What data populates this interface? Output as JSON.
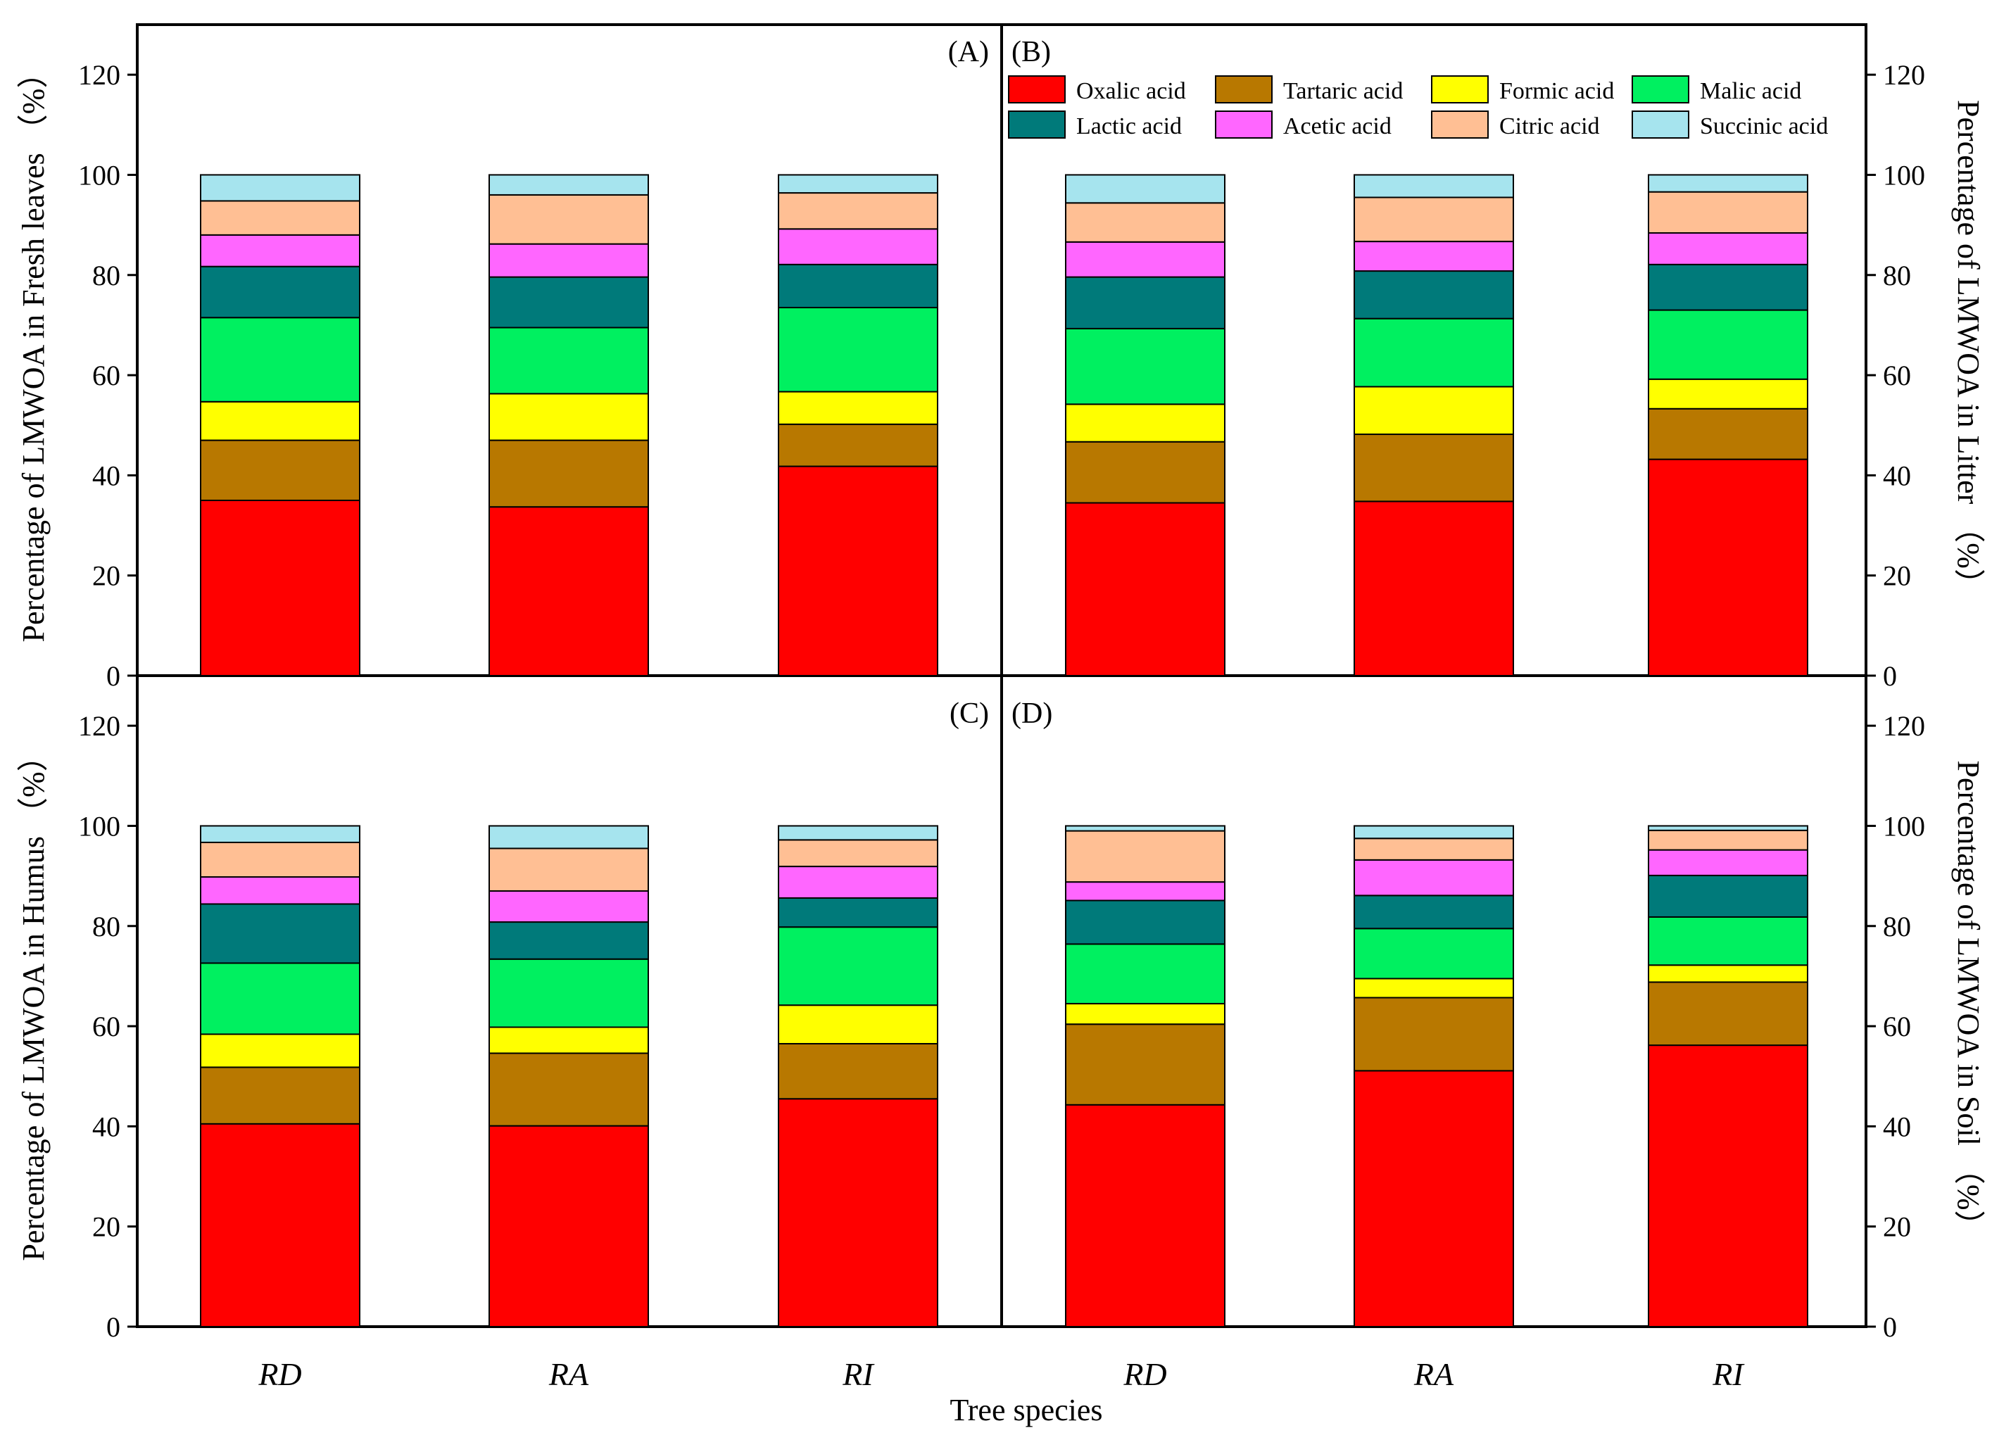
{
  "colors": {
    "Oxalic acid": "#ff0000",
    "Tartaric acid": "#b87800",
    "Formic acid": "#ffff00",
    "Malic acid": "#00f060",
    "Lactic acid": "#007a7a",
    "Acetic acid": "#ff66ff",
    "Citric acid": "#ffbf94",
    "Succinic acid": "#a6e4ee"
  },
  "chart_data": {
    "type": "bar",
    "stacked": true,
    "xlabel": "Tree species",
    "categories": [
      "RD",
      "RA",
      "RI"
    ],
    "series_names": [
      "Oxalic acid",
      "Tartaric acid",
      "Formic acid",
      "Malic acid",
      "Lactic acid",
      "Acetic acid",
      "Citric acid",
      "Succinic acid"
    ],
    "ylim": [
      0,
      130
    ],
    "yticks": [
      0,
      20,
      40,
      60,
      80,
      100,
      120
    ],
    "legend_position": "top of panel B",
    "panels": [
      {
        "label": "(A)",
        "ylabel": "Percentage of LMWOA in Fresh leaves （%）",
        "stacks": {
          "RD": [
            35.0,
            12.0,
            7.7,
            16.8,
            10.2,
            6.3,
            6.8,
            5.2
          ],
          "RA": [
            33.7,
            13.3,
            9.3,
            13.2,
            10.1,
            6.6,
            9.8,
            4.0
          ],
          "RI": [
            41.8,
            8.4,
            6.5,
            16.8,
            8.6,
            7.1,
            7.2,
            3.6
          ]
        }
      },
      {
        "label": "(B)",
        "ylabel": "Percentage of LMWOA in Litter （%）",
        "stacks": {
          "RD": [
            34.5,
            12.2,
            7.5,
            15.1,
            10.3,
            7.0,
            7.8,
            5.6
          ],
          "RA": [
            34.8,
            13.4,
            9.5,
            13.6,
            9.5,
            5.9,
            8.8,
            4.5
          ],
          "RI": [
            43.2,
            10.1,
            5.9,
            13.8,
            9.1,
            6.3,
            8.2,
            3.4
          ]
        }
      },
      {
        "label": "(C)",
        "ylabel": "Percentage of LMWOA in Humus （%）",
        "stacks": {
          "RD": [
            40.5,
            11.3,
            6.6,
            14.2,
            11.8,
            5.4,
            6.9,
            3.3
          ],
          "RA": [
            40.1,
            14.5,
            5.2,
            13.6,
            7.4,
            6.2,
            8.5,
            4.5
          ],
          "RI": [
            45.5,
            11.0,
            7.7,
            15.6,
            5.8,
            6.3,
            5.3,
            2.8
          ]
        }
      },
      {
        "label": "(D)",
        "ylabel": "Percentage of LMWOA in Soil （%）",
        "stacks": {
          "RD": [
            44.3,
            16.1,
            4.1,
            11.9,
            8.7,
            3.7,
            10.2,
            1.0
          ],
          "RA": [
            51.1,
            14.6,
            3.8,
            10.0,
            6.6,
            7.1,
            4.3,
            2.5
          ],
          "RI": [
            56.2,
            12.6,
            3.4,
            9.6,
            8.3,
            5.1,
            3.9,
            0.9
          ]
        }
      }
    ]
  }
}
